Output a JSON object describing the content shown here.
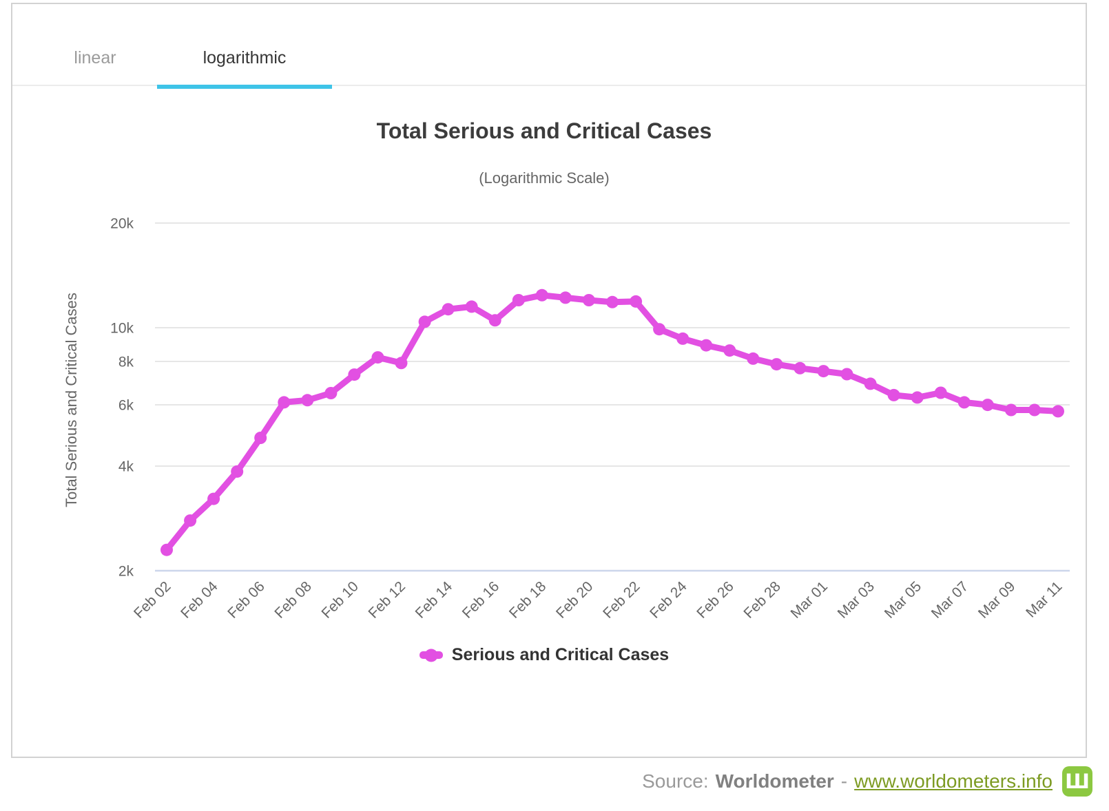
{
  "tabs": {
    "linear": "linear",
    "logarithmic": "logarithmic"
  },
  "chart_data": {
    "type": "line",
    "title": "Total Serious and Critical Cases",
    "subtitle": "(Logarithmic Scale)",
    "ylabel": "Total Serious and Critical Cases",
    "xlabel": "",
    "yscale": "log",
    "ylim": [
      2000,
      20000
    ],
    "grid": "horizontal",
    "legend_position": "bottom",
    "xtick_every": 2,
    "yticks": [
      {
        "label": "20k",
        "value": 20000
      },
      {
        "label": "10k",
        "value": 10000
      },
      {
        "label": "8k",
        "value": 8000
      },
      {
        "label": "6k",
        "value": 6000
      },
      {
        "label": "4k",
        "value": 4000
      },
      {
        "label": "2k",
        "value": 2000
      }
    ],
    "categories": [
      "Feb 02",
      "Feb 03",
      "Feb 04",
      "Feb 05",
      "Feb 06",
      "Feb 07",
      "Feb 08",
      "Feb 09",
      "Feb 10",
      "Feb 11",
      "Feb 12",
      "Feb 13",
      "Feb 14",
      "Feb 15",
      "Feb 16",
      "Feb 17",
      "Feb 18",
      "Feb 19",
      "Feb 20",
      "Feb 21",
      "Feb 22",
      "Feb 23",
      "Feb 24",
      "Feb 25",
      "Feb 26",
      "Feb 27",
      "Feb 28",
      "Feb 29",
      "Mar 01",
      "Mar 02",
      "Mar 03",
      "Mar 04",
      "Mar 05",
      "Mar 06",
      "Mar 07",
      "Mar 08",
      "Mar 09",
      "Mar 10",
      "Mar 11"
    ],
    "series": [
      {
        "name": "Serious and Critical Cases",
        "values": [
          2296,
          2788,
          3219,
          3859,
          4821,
          6101,
          6188,
          6484,
          7333,
          8216,
          7914,
          10400,
          11300,
          11500,
          10500,
          12000,
          12400,
          12200,
          12000,
          11850,
          11900,
          9900,
          9300,
          8900,
          8600,
          8150,
          7850,
          7650,
          7500,
          7350,
          6900,
          6400,
          6300,
          6500,
          6100,
          6000,
          5800,
          5800,
          5750
        ]
      }
    ]
  },
  "footer": {
    "source_prefix": "Source:",
    "source_name": "Worldometer",
    "separator": "-",
    "link": "www.worldometers.info",
    "logo_glyph": "Ш"
  },
  "colors": {
    "series": "#E250E2",
    "tab_underline": "#3EC4E8",
    "grid": "#E6E6E6",
    "axis_line": "#CCD6EB",
    "title": "#3C3C3C",
    "subtitle": "#666666",
    "tick_text": "#666666",
    "legend_text": "#333333",
    "inactive_tab": "#9B9B9B",
    "active_tab": "#363636",
    "footer_text": "#9A9A9A",
    "link": "#7D9B23",
    "logo_bg": "#8CC841"
  }
}
